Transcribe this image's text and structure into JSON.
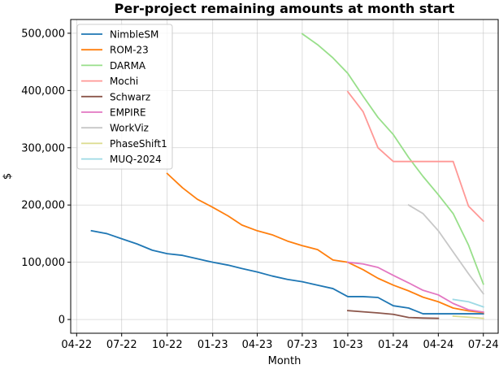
{
  "chart_data": {
    "type": "line",
    "title": "Per-project remaining amounts at month start",
    "xlabel": "Month",
    "ylabel": "$",
    "grid": true,
    "legend_position": "top-left",
    "xlim": [
      "2022-03-20",
      "2024-07-31"
    ],
    "ylim": [
      -24000,
      524000
    ],
    "x_ticks": [
      {
        "date": "2022-04-01",
        "label": "04-22"
      },
      {
        "date": "2022-07-01",
        "label": "07-22"
      },
      {
        "date": "2022-10-01",
        "label": "10-22"
      },
      {
        "date": "2023-01-01",
        "label": "01-23"
      },
      {
        "date": "2023-04-01",
        "label": "04-23"
      },
      {
        "date": "2023-07-01",
        "label": "07-23"
      },
      {
        "date": "2023-10-01",
        "label": "10-23"
      },
      {
        "date": "2024-01-01",
        "label": "01-24"
      },
      {
        "date": "2024-04-01",
        "label": "04-24"
      },
      {
        "date": "2024-07-01",
        "label": "07-24"
      }
    ],
    "y_ticks": [
      {
        "value": 0,
        "label": "0"
      },
      {
        "value": 100000,
        "label": "100,000"
      },
      {
        "value": 200000,
        "label": "200,000"
      },
      {
        "value": 300000,
        "label": "300,000"
      },
      {
        "value": 400000,
        "label": "400,000"
      },
      {
        "value": 500000,
        "label": "500,000"
      }
    ],
    "series": [
      {
        "name": "NimbleSM",
        "color": "#1f77b4",
        "x": [
          "2022-05-01",
          "2022-06-01",
          "2022-07-01",
          "2022-08-01",
          "2022-09-01",
          "2022-10-01",
          "2022-11-01",
          "2022-12-01",
          "2023-01-01",
          "2023-02-01",
          "2023-03-01",
          "2023-04-01",
          "2023-05-01",
          "2023-06-01",
          "2023-07-01",
          "2023-08-01",
          "2023-09-01",
          "2023-10-01",
          "2023-11-01",
          "2023-12-01",
          "2024-01-01",
          "2024-02-01",
          "2024-03-01",
          "2024-04-01",
          "2024-05-01",
          "2024-06-01",
          "2024-07-01"
        ],
        "y": [
          155000,
          150000,
          141000,
          132000,
          121000,
          115000,
          112000,
          106000,
          100000,
          95000,
          89000,
          83000,
          76000,
          70000,
          66000,
          60000,
          54000,
          40000,
          40000,
          38500,
          24000,
          20000,
          10000,
          10000,
          10000,
          10000,
          10000
        ]
      },
      {
        "name": "ROM-23",
        "color": "#ff7f0e",
        "x": [
          "2022-10-01",
          "2022-11-01",
          "2022-12-01",
          "2023-01-01",
          "2023-02-01",
          "2023-03-01",
          "2023-04-01",
          "2023-05-01",
          "2023-06-01",
          "2023-07-01",
          "2023-08-01",
          "2023-09-01",
          "2023-10-01",
          "2023-11-01",
          "2023-12-01",
          "2024-01-01",
          "2024-02-01",
          "2024-03-01",
          "2024-04-01",
          "2024-05-01",
          "2024-06-01",
          "2024-07-01"
        ],
        "y": [
          255000,
          230000,
          210000,
          196000,
          181000,
          165000,
          155000,
          148000,
          137000,
          129000,
          122000,
          104000,
          100000,
          87000,
          72000,
          60000,
          50000,
          39000,
          31000,
          20000,
          15000,
          12000
        ]
      },
      {
        "name": "DARMA",
        "color": "#98df8a",
        "x": [
          "2023-07-01",
          "2023-08-01",
          "2023-09-01",
          "2023-10-01",
          "2023-11-01",
          "2023-12-01",
          "2024-01-01",
          "2024-02-01",
          "2024-03-01",
          "2024-04-01",
          "2024-05-01",
          "2024-06-01",
          "2024-07-01"
        ],
        "y": [
          499000,
          480000,
          457000,
          430000,
          390000,
          353000,
          323000,
          283000,
          250000,
          218000,
          185000,
          130000,
          62000
        ]
      },
      {
        "name": "Mochi",
        "color": "#ff9896",
        "x": [
          "2023-10-01",
          "2023-11-01",
          "2023-12-01",
          "2024-01-01",
          "2024-02-01",
          "2024-03-01",
          "2024-04-01",
          "2024-05-01",
          "2024-06-01",
          "2024-07-01"
        ],
        "y": [
          398000,
          363000,
          300000,
          276000,
          276000,
          276000,
          276000,
          276000,
          198000,
          172000
        ]
      },
      {
        "name": "Schwarz",
        "color": "#8c564b",
        "x": [
          "2023-10-01",
          "2023-11-01",
          "2023-12-01",
          "2024-01-01",
          "2024-02-01",
          "2024-03-01",
          "2024-04-01"
        ],
        "y": [
          15500,
          13500,
          11500,
          9000,
          3500,
          2500,
          2000
        ]
      },
      {
        "name": "EMPIRE",
        "color": "#e377c2",
        "x": [
          "2023-10-01",
          "2023-11-01",
          "2023-12-01",
          "2024-01-01",
          "2024-02-01",
          "2024-03-01",
          "2024-04-01",
          "2024-05-01",
          "2024-06-01",
          "2024-07-01"
        ],
        "y": [
          100000,
          97000,
          91000,
          77000,
          64000,
          51000,
          43000,
          28000,
          17000,
          13000
        ]
      },
      {
        "name": "WorkViz",
        "color": "#c7c7c7",
        "x": [
          "2024-02-01",
          "2024-03-01",
          "2024-04-01",
          "2024-05-01",
          "2024-06-01",
          "2024-07-01"
        ],
        "y": [
          200000,
          185000,
          155000,
          118000,
          80000,
          45000
        ]
      },
      {
        "name": "PhaseShift1",
        "color": "#dbdb8d",
        "x": [
          "2024-05-01",
          "2024-06-01",
          "2024-07-01"
        ],
        "y": [
          6000,
          4000,
          2000
        ]
      },
      {
        "name": "MUQ-2024",
        "color": "#9edae5",
        "x": [
          "2024-05-01",
          "2024-06-01",
          "2024-07-01"
        ],
        "y": [
          35000,
          31000,
          22000
        ]
      }
    ]
  }
}
